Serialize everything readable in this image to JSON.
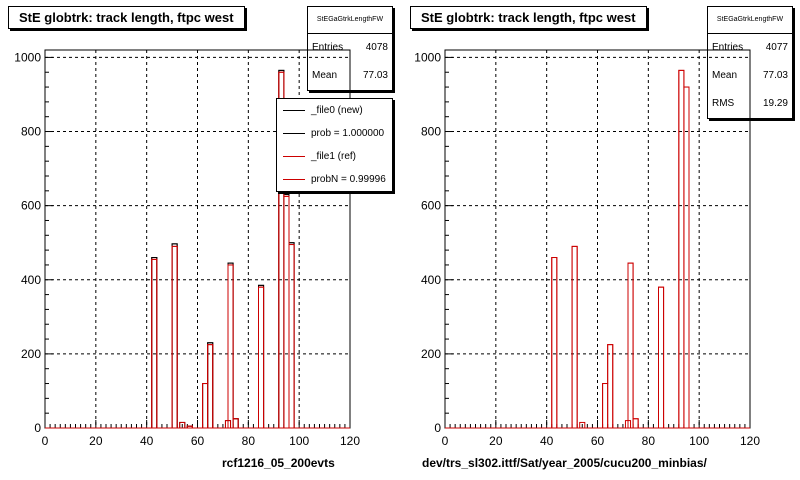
{
  "colors": {
    "new": "#000000",
    "ref": "#cc0000",
    "grid": "#000000"
  },
  "panels": [
    {
      "title": "StE globtrk: track length, ftpc west",
      "stats": {
        "name": "StEGaGtrkLengthFW",
        "rows": [
          {
            "label": "Entries",
            "value": "4078"
          },
          {
            "label": "Mean",
            "value": "77.03"
          }
        ]
      },
      "legend": [
        {
          "label": "_file0 (new)",
          "color": "#000000"
        },
        {
          "label": "prob = 1.000000",
          "color": "#000000"
        },
        {
          "label": "_file1 (ref)",
          "color": "#cc0000"
        },
        {
          "label": "probN = 0.99996",
          "color": "#cc0000"
        }
      ],
      "footnote": "rcf1216_05_200evts"
    },
    {
      "title": "StE globtrk: track length, ftpc west",
      "stats": {
        "name": "StEGaGtrkLengthFW",
        "rows": [
          {
            "label": "Entries",
            "value": "4077"
          },
          {
            "label": "Mean",
            "value": "77.03"
          },
          {
            "label": "RMS",
            "value": "19.29"
          }
        ]
      },
      "legend": [],
      "footnote": "dev/trs_sl302.ittf/Sat/year_2005/cucu200_minbias/"
    }
  ],
  "chart_data": [
    {
      "type": "histogram",
      "title": "StE globtrk: track length, ftpc west",
      "xlabel": "",
      "ylabel": "",
      "xlim": [
        0,
        120
      ],
      "ylim": [
        0,
        1020
      ],
      "xticks": [
        0,
        20,
        40,
        60,
        80,
        100,
        120
      ],
      "yticks": [
        0,
        200,
        400,
        600,
        800,
        1000
      ],
      "grid": true,
      "legend_position": "top-right",
      "series": [
        {
          "name": "_file0 (new)",
          "color": "#000000",
          "x": [
            43,
            51,
            54,
            57,
            63,
            65,
            72,
            73,
            75,
            85,
            93,
            95,
            97
          ],
          "values": [
            460,
            497,
            15,
            5,
            120,
            230,
            20,
            445,
            25,
            385,
            965,
            630,
            500
          ]
        },
        {
          "name": "_file1 (ref)",
          "color": "#cc0000",
          "x": [
            43,
            51,
            54,
            57,
            63,
            65,
            72,
            73,
            75,
            85,
            93,
            95,
            97
          ],
          "values": [
            455,
            490,
            15,
            5,
            120,
            225,
            20,
            440,
            25,
            380,
            960,
            625,
            495
          ]
        }
      ]
    },
    {
      "type": "histogram",
      "title": "StE globtrk: track length, ftpc west",
      "xlabel": "",
      "ylabel": "",
      "xlim": [
        0,
        120
      ],
      "ylim": [
        0,
        1020
      ],
      "xticks": [
        0,
        20,
        40,
        60,
        80,
        100,
        120
      ],
      "yticks": [
        0,
        200,
        400,
        600,
        800,
        1000
      ],
      "grid": true,
      "series": [
        {
          "color": "#cc0000",
          "x": [
            43,
            51,
            54,
            63,
            65,
            72,
            73,
            75,
            85,
            93,
            95
          ],
          "values": [
            460,
            490,
            15,
            120,
            225,
            20,
            445,
            25,
            380,
            965,
            920
          ]
        }
      ]
    }
  ]
}
